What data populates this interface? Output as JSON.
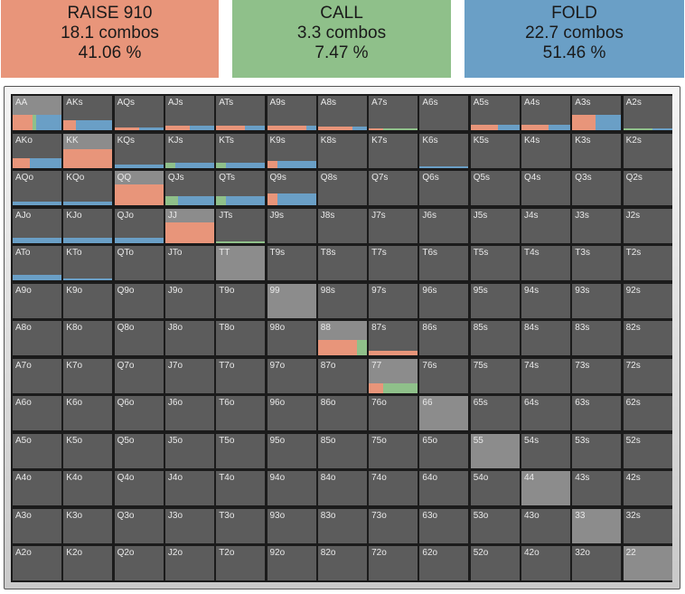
{
  "colors": {
    "raise": "#e8957a",
    "call": "#8fc08a",
    "fold": "#6a9fc6",
    "cell_bg": "#5c5c5c",
    "pair_highlight": "#8c8c8c",
    "grid_bg": "#1b1b1b"
  },
  "actions": [
    {
      "id": "raise",
      "title": "RAISE 910",
      "combos": "18.1 combos",
      "pct": "41.06 %",
      "color": "#e8957a"
    },
    {
      "id": "call",
      "title": "CALL",
      "combos": "3.3 combos",
      "pct": "7.47 %",
      "color": "#8fc08a"
    },
    {
      "id": "fold",
      "title": "FOLD",
      "combos": "22.7 combos",
      "pct": "51.46 %",
      "color": "#6a9fc6"
    }
  ],
  "ranks": [
    "A",
    "K",
    "Q",
    "J",
    "T",
    "9",
    "8",
    "7",
    "6",
    "5",
    "4",
    "3",
    "2"
  ],
  "hand_freqs": {
    "AA": {
      "weight": 0.45,
      "raise": 0.4,
      "call": 0.08,
      "fold": 0.52
    },
    "AKs": {
      "weight": 0.3,
      "raise": 0.25,
      "call": 0.0,
      "fold": 0.75
    },
    "AQs": {
      "weight": 0.08,
      "raise": 0.5,
      "call": 0.0,
      "fold": 0.5
    },
    "AJs": {
      "weight": 0.12,
      "raise": 0.5,
      "call": 0.0,
      "fold": 0.5
    },
    "ATs": {
      "weight": 0.12,
      "raise": 0.6,
      "call": 0.0,
      "fold": 0.4
    },
    "A9s": {
      "weight": 0.12,
      "raise": 0.8,
      "call": 0.0,
      "fold": 0.2
    },
    "A8s": {
      "weight": 0.1,
      "raise": 0.7,
      "call": 0.0,
      "fold": 0.3
    },
    "A7s": {
      "weight": 0.06,
      "raise": 0.3,
      "call": 0.7,
      "fold": 0.0
    },
    "A5s": {
      "weight": 0.15,
      "raise": 0.55,
      "call": 0.0,
      "fold": 0.45
    },
    "A4s": {
      "weight": 0.15,
      "raise": 0.55,
      "call": 0.0,
      "fold": 0.45
    },
    "A3s": {
      "weight": 0.45,
      "raise": 0.48,
      "call": 0.0,
      "fold": 0.52
    },
    "A2s": {
      "weight": 0.03,
      "raise": 0.0,
      "call": 0.6,
      "fold": 0.4
    },
    "AKo": {
      "weight": 0.3,
      "raise": 0.35,
      "call": 0.0,
      "fold": 0.65
    },
    "KK": {
      "weight": 0.55,
      "raise": 1.0,
      "call": 0.0,
      "fold": 0.0
    },
    "KQs": {
      "weight": 0.1,
      "raise": 0.0,
      "call": 0.0,
      "fold": 1.0
    },
    "KJs": {
      "weight": 0.15,
      "raise": 0.0,
      "call": 0.2,
      "fold": 0.8
    },
    "KTs": {
      "weight": 0.15,
      "raise": 0.0,
      "call": 0.2,
      "fold": 0.8
    },
    "K9s": {
      "weight": 0.2,
      "raise": 0.2,
      "call": 0.0,
      "fold": 0.8
    },
    "K6s": {
      "weight": 0.04,
      "raise": 0.0,
      "call": 0.0,
      "fold": 1.0
    },
    "AQo": {
      "weight": 0.1,
      "raise": 0.0,
      "call": 0.0,
      "fold": 1.0
    },
    "KQo": {
      "weight": 0.1,
      "raise": 0.0,
      "call": 0.0,
      "fold": 1.0
    },
    "QQ": {
      "weight": 0.6,
      "raise": 1.0,
      "call": 0.0,
      "fold": 0.0
    },
    "QJs": {
      "weight": 0.25,
      "raise": 0.0,
      "call": 0.25,
      "fold": 0.75
    },
    "QTs": {
      "weight": 0.25,
      "raise": 0.0,
      "call": 0.2,
      "fold": 0.8
    },
    "Q9s": {
      "weight": 0.35,
      "raise": 0.2,
      "call": 0.0,
      "fold": 0.8
    },
    "AJo": {
      "weight": 0.15,
      "raise": 0.0,
      "call": 0.0,
      "fold": 1.0
    },
    "KJo": {
      "weight": 0.15,
      "raise": 0.0,
      "call": 0.0,
      "fold": 1.0
    },
    "QJo": {
      "weight": 0.15,
      "raise": 0.0,
      "call": 0.0,
      "fold": 1.0
    },
    "JJ": {
      "weight": 0.6,
      "raise": 1.0,
      "call": 0.0,
      "fold": 0.0
    },
    "JTs": {
      "weight": 0.05,
      "raise": 0.0,
      "call": 1.0,
      "fold": 0.0
    },
    "ATo": {
      "weight": 0.15,
      "raise": 0.0,
      "call": 0.0,
      "fold": 1.0
    },
    "KTo": {
      "weight": 0.05,
      "raise": 0.0,
      "call": 0.0,
      "fold": 1.0
    },
    "TT": {
      "weight": 0.5,
      "raise": 0.0,
      "call": 0.0,
      "fold": 0.0
    },
    "88": {
      "weight": 0.45,
      "raise": 0.8,
      "call": 0.2,
      "fold": 0.0
    },
    "87s": {
      "weight": 0.12,
      "raise": 1.0,
      "call": 0.0,
      "fold": 0.0
    },
    "77": {
      "weight": 0.3,
      "raise": 0.3,
      "call": 0.7,
      "fold": 0.0
    }
  },
  "pairs_highlight": [
    "AA",
    "KK",
    "QQ",
    "JJ",
    "TT",
    "99",
    "88",
    "77",
    "66",
    "55",
    "44",
    "33",
    "22"
  ]
}
